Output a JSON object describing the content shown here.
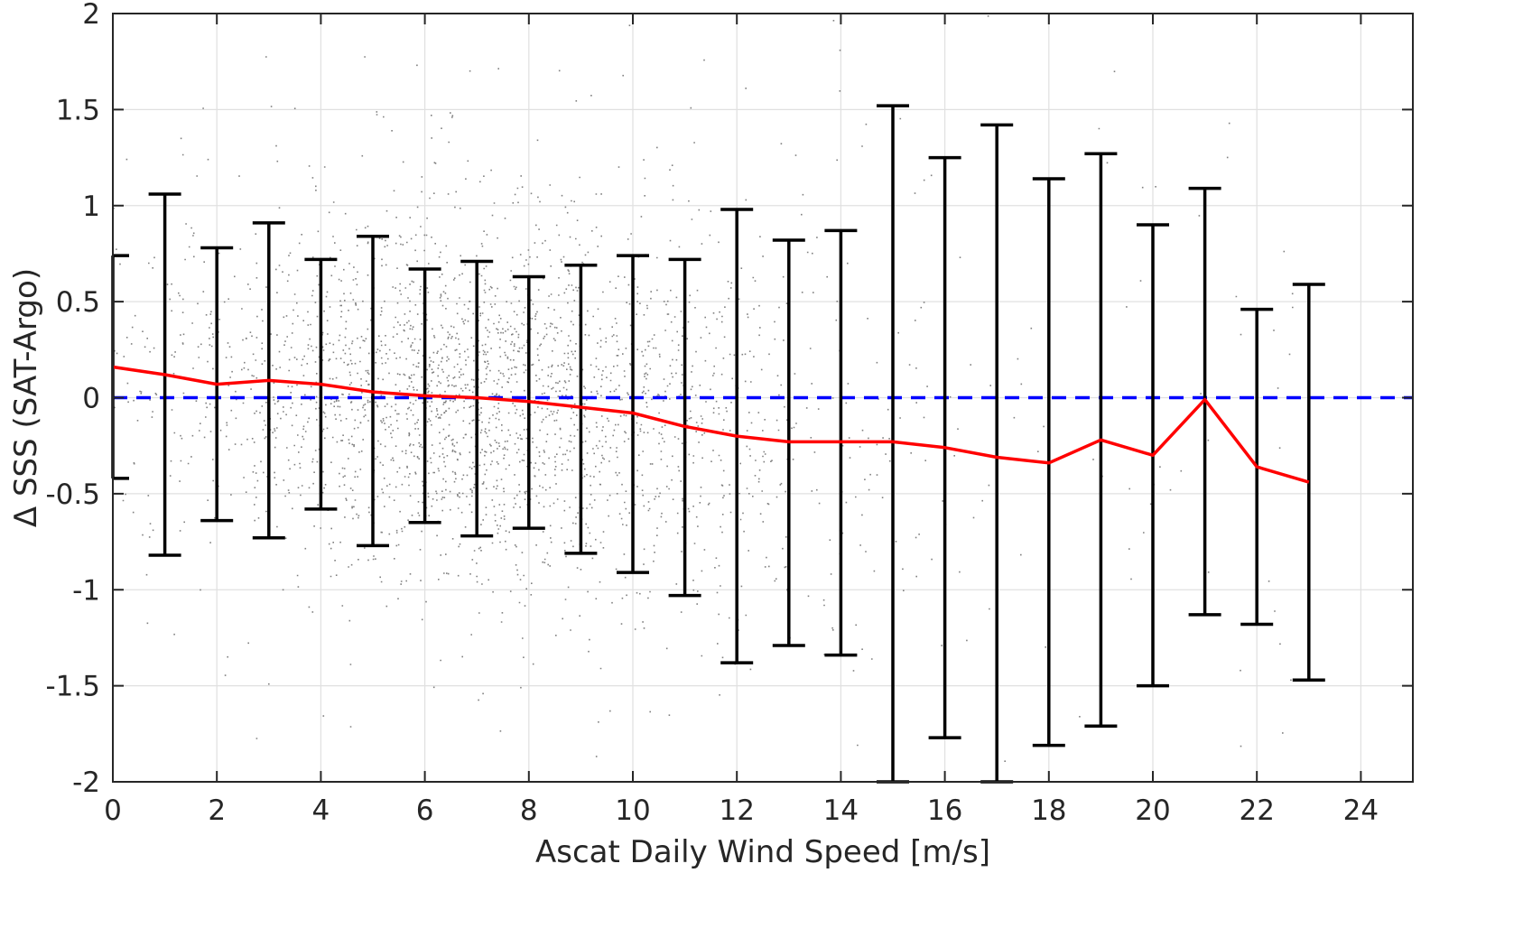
{
  "chart_data": {
    "type": "scatter",
    "title": "",
    "xlabel": "Ascat Daily Wind Speed [m/s]",
    "ylabel": "Δ SSS (SAT-Argo)",
    "xlim": [
      0,
      25
    ],
    "ylim": [
      -2,
      2
    ],
    "x_ticks": [
      0,
      2,
      4,
      6,
      8,
      10,
      12,
      14,
      16,
      18,
      20,
      22,
      24
    ],
    "y_ticks": [
      2,
      1.5,
      1,
      0.5,
      0,
      -0.5,
      -1,
      -1.5,
      -2
    ],
    "grid": true,
    "legend": "none",
    "colors": {
      "scatter_points": "#808080",
      "mean_line": "#ff0000",
      "zero_line": "#0000ff",
      "error_bars": "#000000",
      "grid": "#e0e0e0",
      "axes": "#262626"
    },
    "scatter_description_cloud": {
      "center_x": 7,
      "center_y": 0.05,
      "note": "dense cloud of grey points concentrated between 2 and 12 m/s, sparse beyond 14 m/s"
    },
    "mean_line": {
      "x": [
        0,
        1,
        2,
        3,
        4,
        5,
        6,
        7,
        8,
        9,
        10,
        11,
        12,
        13,
        14,
        15,
        16,
        17,
        18,
        19,
        20,
        21,
        22,
        23
      ],
      "y": [
        0.16,
        0.12,
        0.07,
        0.09,
        0.07,
        0.03,
        0.01,
        0.0,
        -0.02,
        -0.05,
        -0.08,
        -0.15,
        -0.2,
        -0.23,
        -0.23,
        -0.23,
        -0.26,
        -0.31,
        -0.34,
        -0.22,
        -0.3,
        -0.01,
        -0.36,
        -0.44
      ]
    },
    "zero_line": {
      "y": 0,
      "style": "dashed"
    },
    "error_bars": {
      "x": [
        0,
        1,
        2,
        3,
        4,
        5,
        6,
        7,
        8,
        9,
        10,
        11,
        12,
        13,
        14,
        15,
        16,
        17,
        18,
        19,
        20,
        21,
        22,
        23
      ],
      "upper": [
        0.74,
        1.06,
        0.78,
        0.91,
        0.72,
        0.84,
        0.67,
        0.71,
        0.63,
        0.69,
        0.74,
        0.72,
        0.98,
        0.82,
        0.87,
        1.52,
        1.25,
        1.42,
        1.14,
        1.27,
        0.9,
        1.09,
        0.46,
        0.59
      ],
      "lower": [
        -0.42,
        -0.82,
        -0.64,
        -0.73,
        -0.58,
        -0.77,
        -0.65,
        -0.72,
        -0.68,
        -0.81,
        -0.91,
        -1.03,
        -1.38,
        -1.29,
        -1.34,
        -2.0,
        -1.77,
        -2.0,
        -1.81,
        -1.71,
        -1.5,
        -1.13,
        -1.18,
        -1.47
      ]
    }
  }
}
